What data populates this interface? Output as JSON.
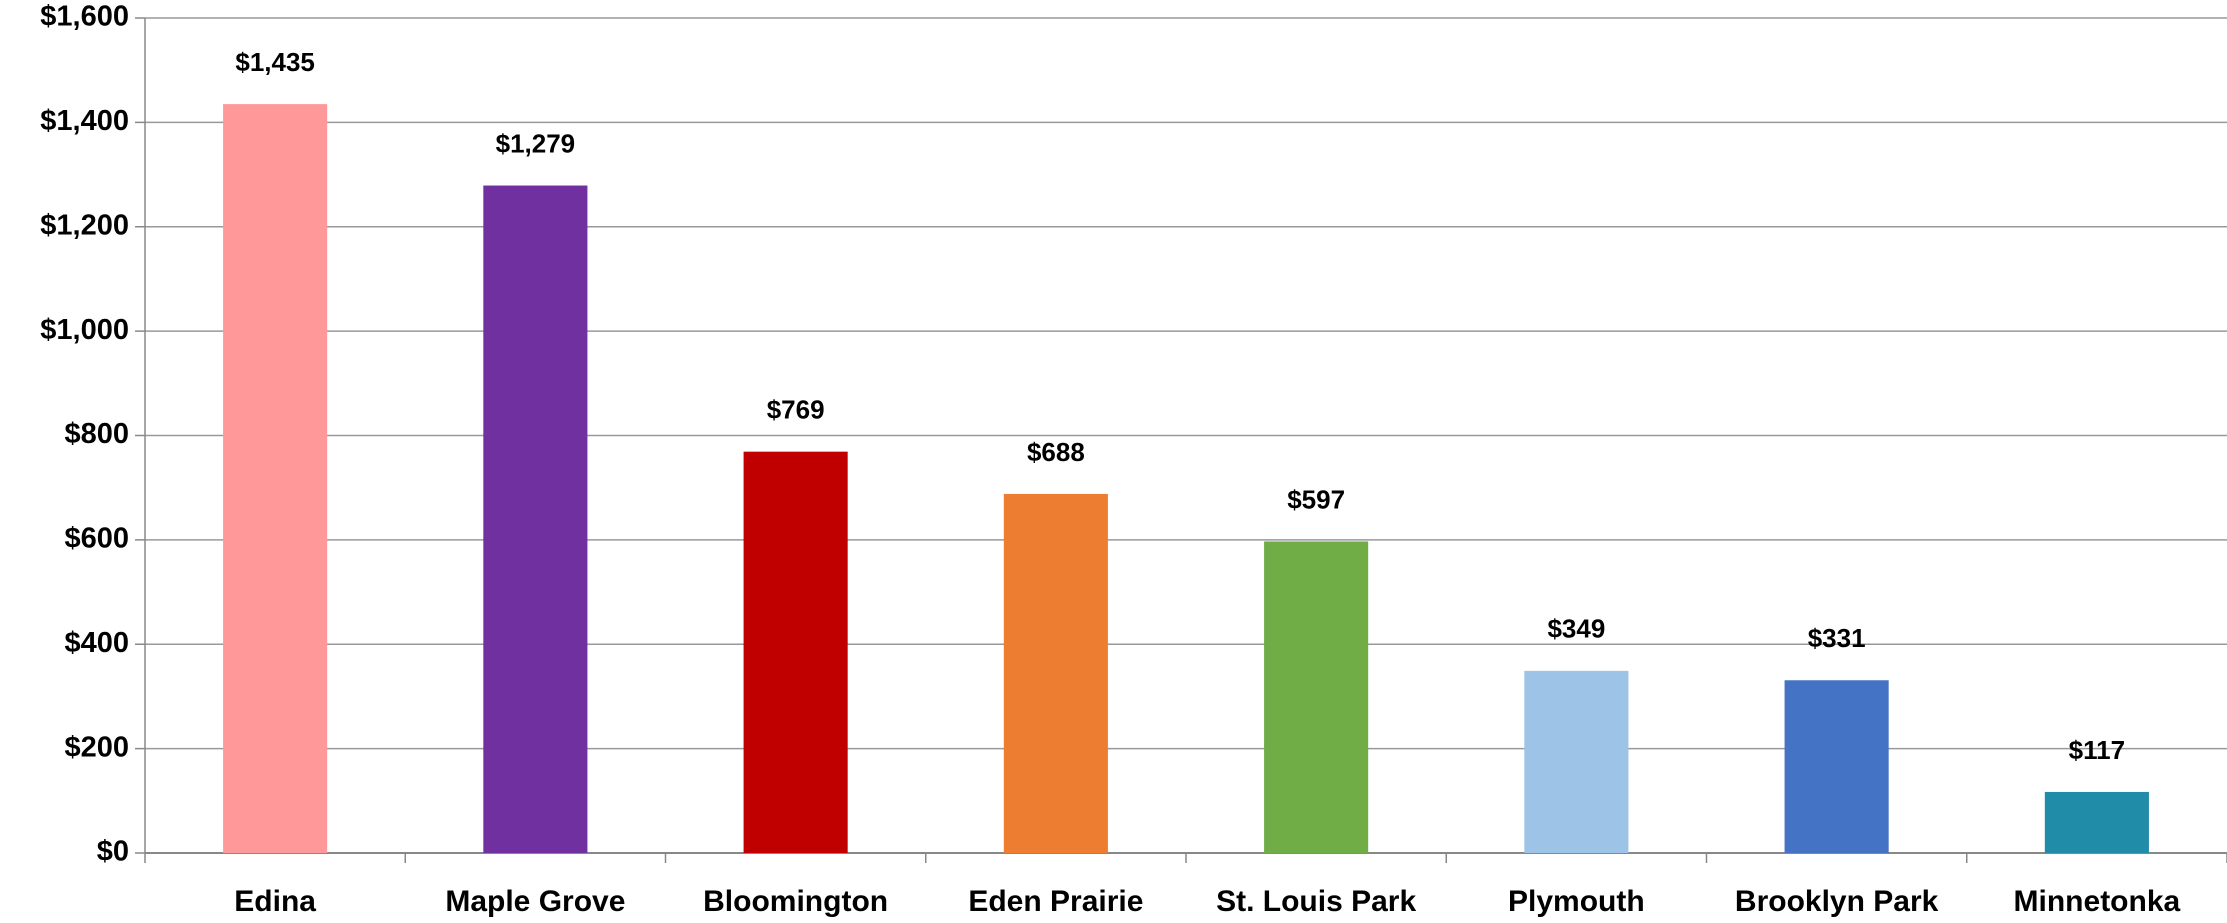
{
  "chart_data": {
    "type": "bar",
    "categories": [
      "Edina",
      "Maple Grove",
      "Bloomington",
      "Eden Prairie",
      "St. Louis Park",
      "Plymouth",
      "Brooklyn Park",
      "Minnetonka"
    ],
    "values": [
      1435,
      1279,
      769,
      688,
      597,
      349,
      331,
      117
    ],
    "value_labels": [
      "$1,435",
      "$1,279",
      "$769",
      "$688",
      "$597",
      "$349",
      "$331",
      "$117"
    ],
    "colors": [
      "#ff9999",
      "#7030a0",
      "#c00000",
      "#ed7d31",
      "#70ad47",
      "#9dc3e6",
      "#4472c4",
      "#218ca8"
    ],
    "ylim": [
      0,
      1600
    ],
    "yticks": [
      {
        "value": 0,
        "label": "$0"
      },
      {
        "value": 200,
        "label": "$200"
      },
      {
        "value": 400,
        "label": "$400"
      },
      {
        "value": 600,
        "label": "$600"
      },
      {
        "value": 800,
        "label": "$800"
      },
      {
        "value": 1000,
        "label": "$1,000"
      },
      {
        "value": 1200,
        "label": "$1,200"
      },
      {
        "value": 1400,
        "label": "$1,400"
      },
      {
        "value": 1600,
        "label": "$1,600"
      }
    ],
    "grid": true
  }
}
